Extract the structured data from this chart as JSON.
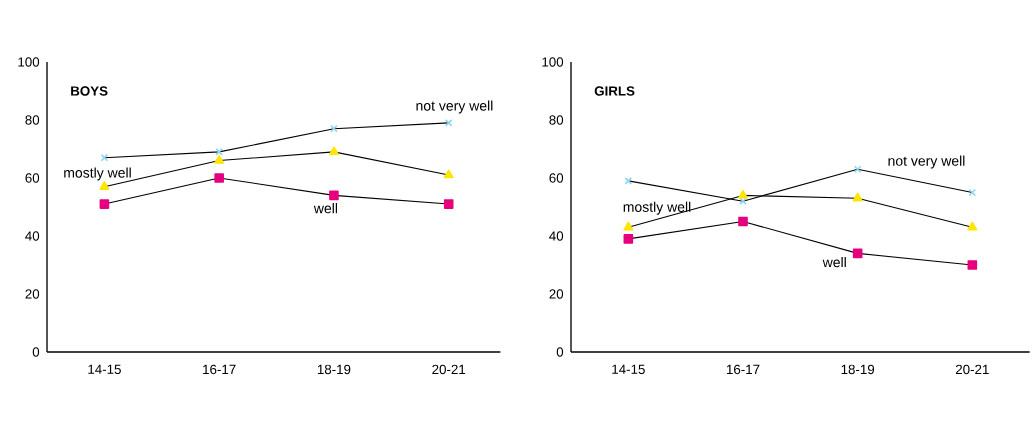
{
  "chart_data": [
    {
      "type": "line",
      "title": "BOYS",
      "categories": [
        "14-15",
        "16-17",
        "18-19",
        "20-21"
      ],
      "ylim": [
        0,
        100
      ],
      "yticks": [
        0,
        20,
        40,
        60,
        80,
        100
      ],
      "grid": false,
      "series": [
        {
          "name": "not very well",
          "color": "#8fd3f0",
          "marker": "cross",
          "values": [
            67,
            69,
            77,
            79
          ]
        },
        {
          "name": "mostly well",
          "color": "#ffe600",
          "marker": "triangle",
          "values": [
            57,
            66,
            69,
            61
          ]
        },
        {
          "name": "well",
          "color": "#e6007e",
          "marker": "square",
          "values": [
            51,
            60,
            54,
            51
          ]
        }
      ]
    },
    {
      "type": "line",
      "title": "GIRLS",
      "categories": [
        "14-15",
        "16-17",
        "18-19",
        "20-21"
      ],
      "ylim": [
        0,
        100
      ],
      "yticks": [
        0,
        20,
        40,
        60,
        80,
        100
      ],
      "grid": false,
      "series": [
        {
          "name": "not very well",
          "color": "#8fd3f0",
          "marker": "cross",
          "values": [
            59,
            52,
            63,
            55
          ]
        },
        {
          "name": "mostly well",
          "color": "#ffe600",
          "marker": "triangle",
          "values": [
            43,
            54,
            53,
            43
          ]
        },
        {
          "name": "well",
          "color": "#e6007e",
          "marker": "square",
          "values": [
            39,
            45,
            34,
            30
          ]
        }
      ]
    }
  ]
}
